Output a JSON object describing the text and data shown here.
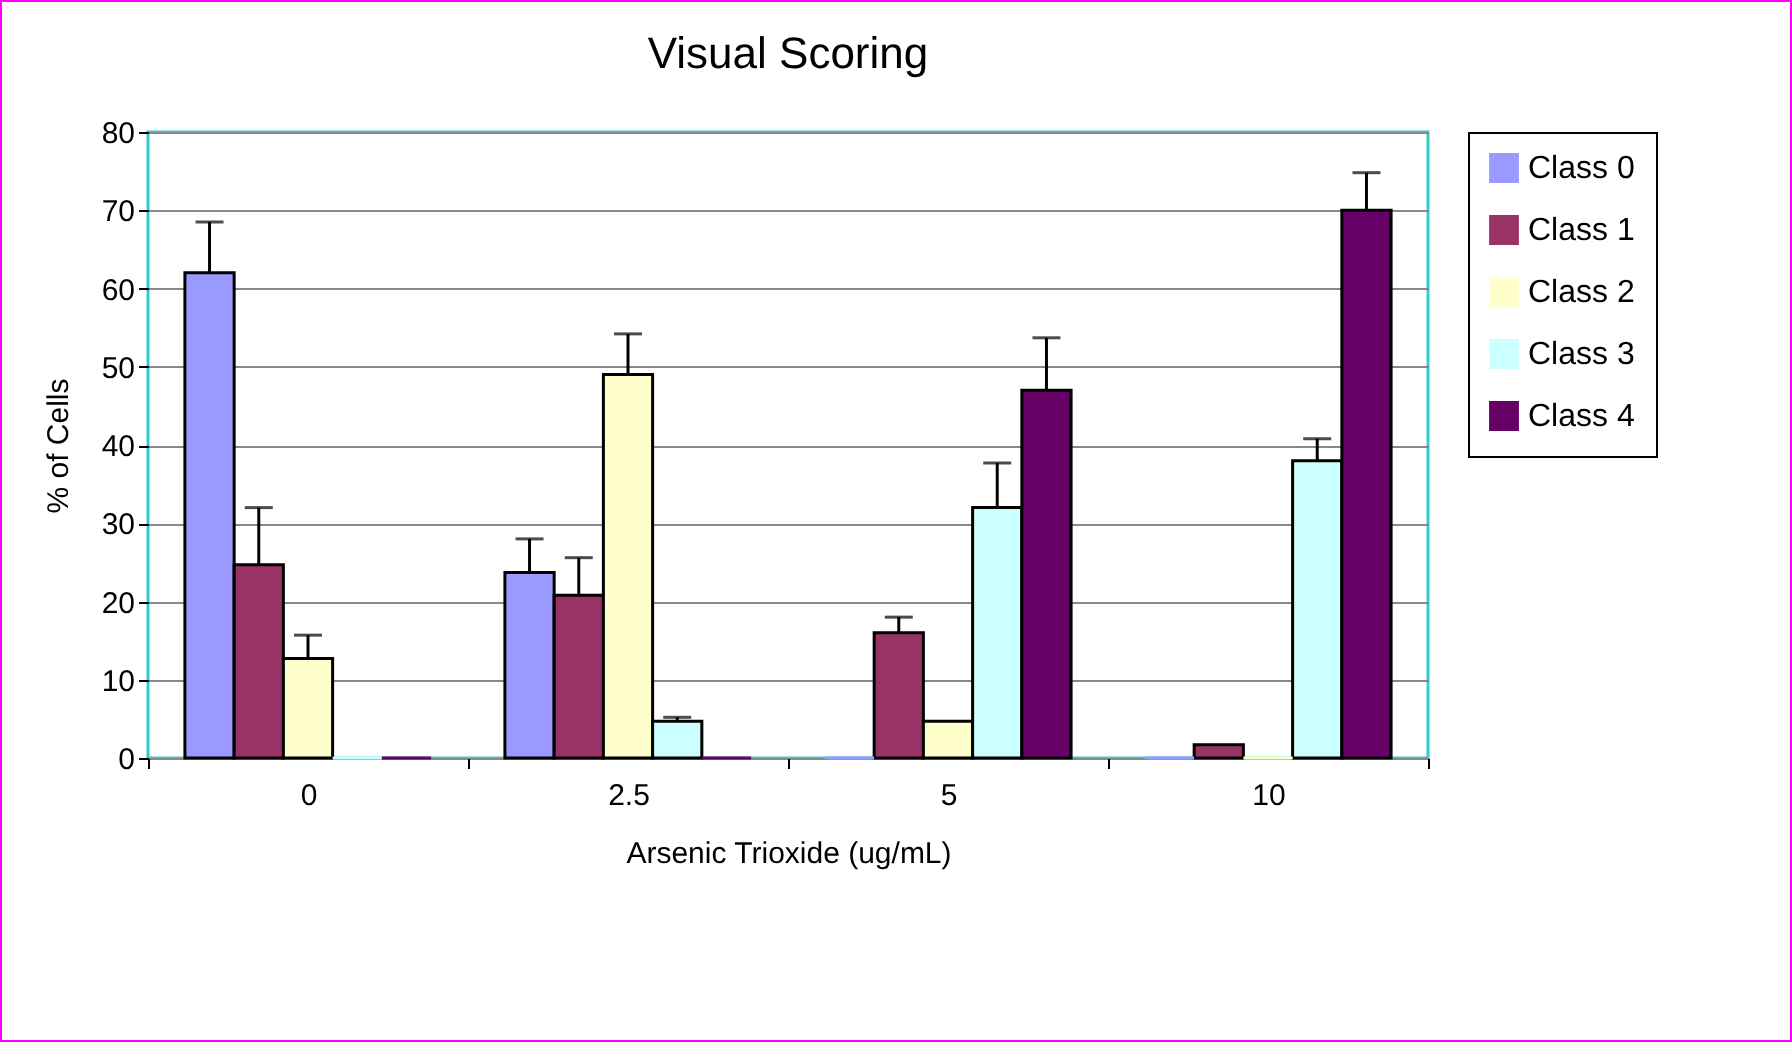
{
  "chart_data": {
    "type": "bar",
    "title": "Visual Scoring",
    "xlabel": "Arsenic Trioxide (ug/mL)",
    "ylabel": "% of Cells",
    "categories": [
      "0",
      "2.5",
      "5",
      "10"
    ],
    "series": [
      {
        "name": "Class 0",
        "color": "#9999ff",
        "values": [
          62,
          23.7,
          0,
          0
        ],
        "errors": [
          [
            62,
            68.5
          ],
          [
            23.7,
            28
          ],
          null,
          null
        ]
      },
      {
        "name": "Class 1",
        "color": "#993366",
        "values": [
          24.7,
          20.8,
          16,
          1.7
        ],
        "errors": [
          [
            24.7,
            32
          ],
          [
            20.8,
            25.6
          ],
          [
            16,
            18
          ],
          null
        ]
      },
      {
        "name": "Class 2",
        "color": "#ffffcc",
        "values": [
          12.7,
          49,
          4.7,
          0
        ],
        "errors": [
          [
            12.7,
            15.7
          ],
          [
            49,
            54.2
          ],
          null,
          null
        ]
      },
      {
        "name": "Class 3",
        "color": "#ccffff",
        "values": [
          0,
          4.7,
          32,
          38
        ],
        "errors": [
          null,
          [
            4.7,
            5.2
          ],
          [
            32,
            37.7
          ],
          [
            38,
            40.8
          ]
        ]
      },
      {
        "name": "Class 4",
        "color": "#660066",
        "values": [
          0,
          0,
          47,
          70
        ],
        "errors": [
          null,
          null,
          [
            47,
            53.7
          ],
          [
            70,
            74.8
          ]
        ]
      }
    ],
    "ylim": [
      0,
      80
    ],
    "yticks": [
      0,
      10,
      20,
      30,
      40,
      50,
      60,
      70,
      80
    ],
    "grid": "y",
    "legend": "right"
  }
}
